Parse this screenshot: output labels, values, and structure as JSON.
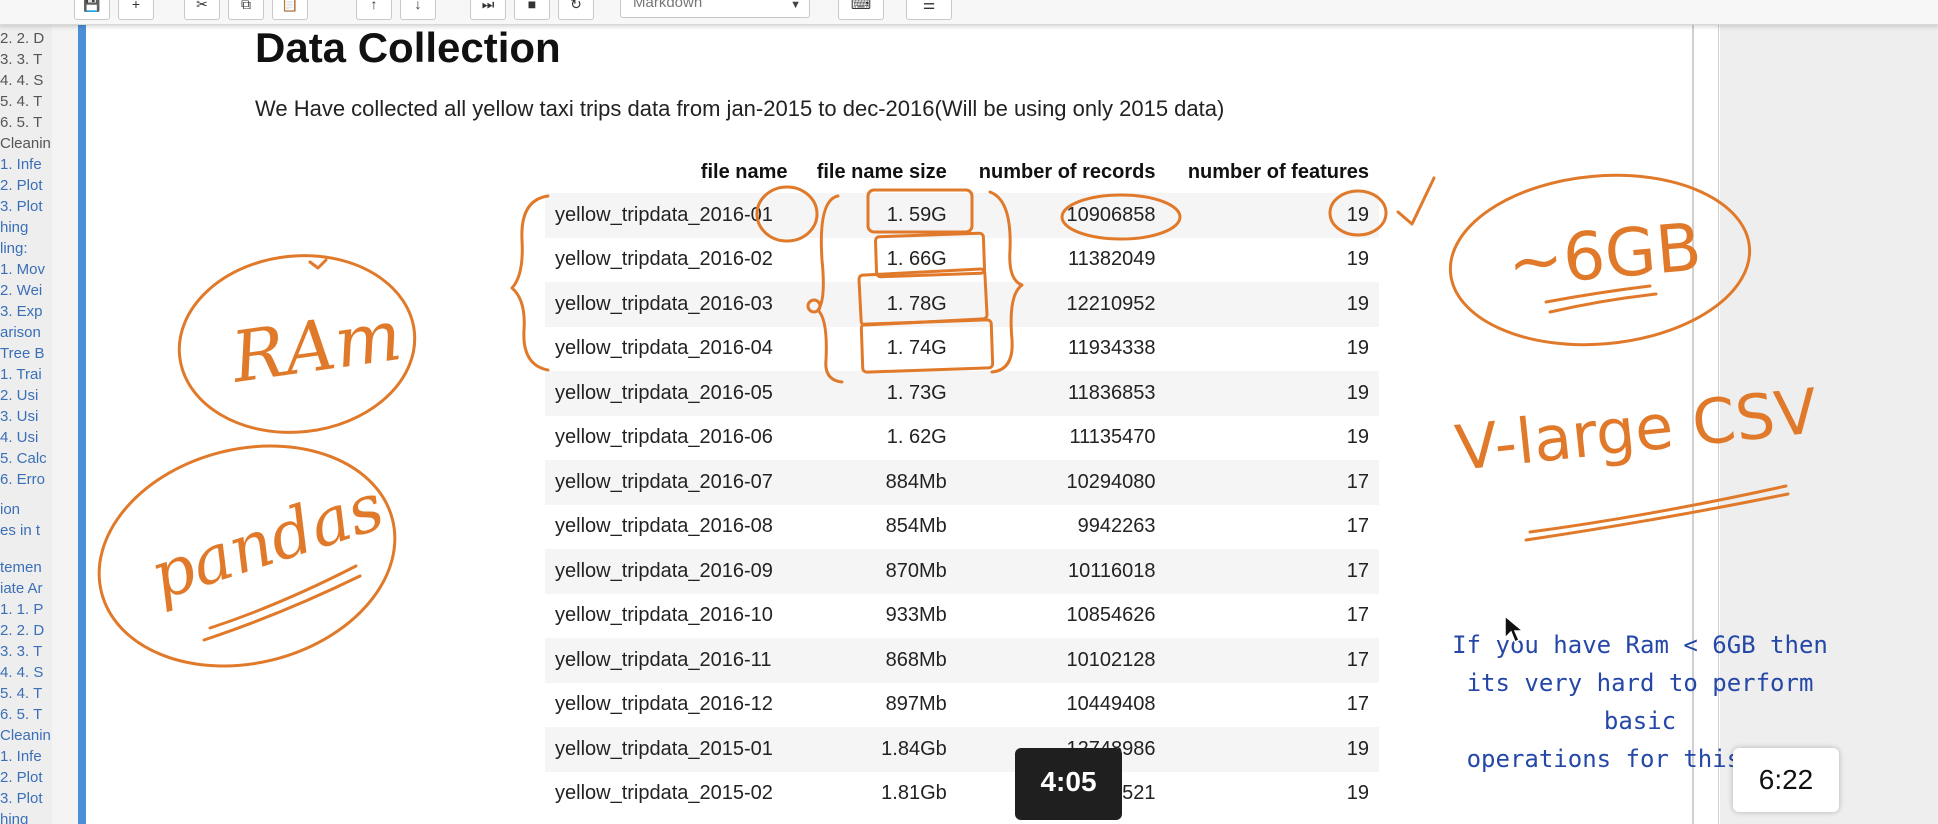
{
  "toolbar": {
    "buttons": [
      "💾",
      "+",
      "✂",
      "⧉",
      "📋",
      "↑",
      "↓",
      "⏭",
      "■",
      "↻"
    ],
    "cell_type": "Markdown",
    "extra_buttons": [
      "⌨",
      "☰"
    ]
  },
  "toc": {
    "items": [
      "2. 2. D",
      "3. 3. T",
      "4. 4. S",
      "5. 4. T",
      "6. 5. T",
      "Cleanin",
      "1. Infe",
      "2. Plot",
      "3. Plot",
      "hing",
      "ling:",
      "1. Mov",
      "2. Wei",
      "3. Exp",
      "arison",
      "Tree B",
      "1. Trai",
      "2. Usi",
      "3. Usi",
      "4. Usi",
      "5. Calc",
      "6. Erro",
      "ion",
      "es in t",
      "temen",
      "iate Ar",
      "1. 1. P",
      "2. 2. D",
      "3. 3. T",
      "4. 4. S",
      "5. 4. T",
      "6. 5. T",
      "Cleanin",
      "1. Infe",
      "2. Plot",
      "3. Plot",
      "hing"
    ]
  },
  "content": {
    "heading": "Data Collection",
    "paragraph": "We Have collected all yellow taxi trips data from jan-2015 to dec-2016(Will be using only 2015 data)"
  },
  "table": {
    "headers": [
      "file name",
      "file name size",
      "number of records",
      "number of features"
    ],
    "rows": [
      [
        "yellow_tripdata_2016-01",
        "1. 59G",
        "10906858",
        "19"
      ],
      [
        "yellow_tripdata_2016-02",
        "1. 66G",
        "11382049",
        "19"
      ],
      [
        "yellow_tripdata_2016-03",
        "1. 78G",
        "12210952",
        "19"
      ],
      [
        "yellow_tripdata_2016-04",
        "1. 74G",
        "11934338",
        "19"
      ],
      [
        "yellow_tripdata_2016-05",
        "1. 73G",
        "11836853",
        "19"
      ],
      [
        "yellow_tripdata_2016-06",
        "1. 62G",
        "11135470",
        "19"
      ],
      [
        "yellow_tripdata_2016-07",
        "884Mb",
        "10294080",
        "17"
      ],
      [
        "yellow_tripdata_2016-08",
        "854Mb",
        "9942263",
        "17"
      ],
      [
        "yellow_tripdata_2016-09",
        "870Mb",
        "10116018",
        "17"
      ],
      [
        "yellow_tripdata_2016-10",
        "933Mb",
        "10854626",
        "17"
      ],
      [
        "yellow_tripdata_2016-11",
        "868Mb",
        "10102128",
        "17"
      ],
      [
        "yellow_tripdata_2016-12",
        "897Mb",
        "10449408",
        "17"
      ],
      [
        "yellow_tripdata_2015-01",
        "1.84Gb",
        "12748986",
        "19"
      ],
      [
        "yellow_tripdata_2015-02",
        "1.81Gb",
        "12450521",
        "19"
      ]
    ]
  },
  "annotations": {
    "ram": "RAm",
    "pandas": "pandas",
    "six_gb": "~6GB",
    "vlarge": "V-large CSV",
    "checkmark": "✓",
    "note_lines": [
      "If you have Ram < 6GB then",
      "its very hard to perform basic",
      "operations for this data"
    ]
  },
  "video": {
    "current_time": "4:05",
    "duration": "6:22"
  },
  "colors": {
    "ink": "#e07a2a",
    "note": "#2447a8",
    "cell_bar": "#4a8fd8"
  }
}
